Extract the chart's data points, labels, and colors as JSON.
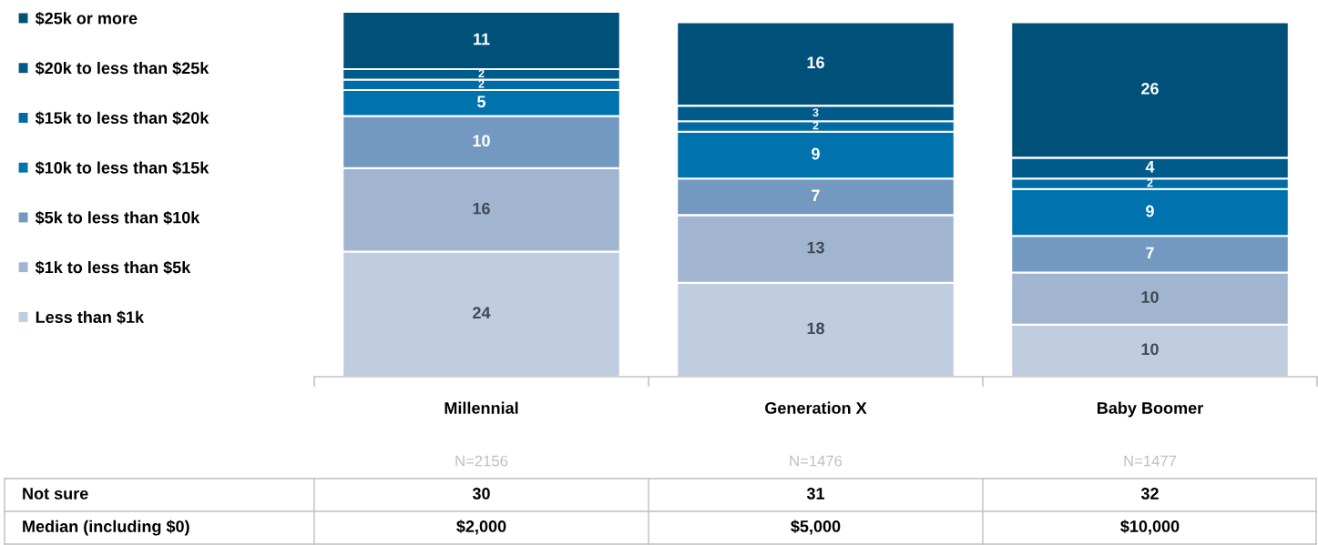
{
  "chart_data": {
    "type": "bar",
    "stacked": true,
    "data_labels": true,
    "legend": "top left",
    "grid": false,
    "categories": [
      "Millennial",
      "Generation X",
      "Baby Boomer"
    ],
    "series": [
      {
        "name": "Less than $1k",
        "color": "#c0cde0",
        "values": [
          24,
          18,
          10
        ]
      },
      {
        "name": "$1k to less than $5k",
        "color": "#a2b5d0",
        "values": [
          16,
          13,
          10
        ]
      },
      {
        "name": "$5k to less than $10k",
        "color": "#7399c0",
        "values": [
          10,
          7,
          7
        ]
      },
      {
        "name": "$10k to less than $15k",
        "color": "#0072ae",
        "values": [
          5,
          9,
          9
        ]
      },
      {
        "name": "$15k to less than $20k",
        "color": "#006ba5",
        "values": [
          2,
          2,
          2
        ]
      },
      {
        "name": "$20k to less than $25k",
        "color": "#005a8a",
        "values": [
          2,
          3,
          4
        ]
      },
      {
        "name": "$25k or more",
        "color": "#00517a",
        "values": [
          11,
          16,
          26
        ]
      }
    ],
    "annotations": [
      "N=2156",
      "N=1476",
      "N=1477",
      "Not sure",
      "30",
      "31",
      "32",
      "Median (including $0)",
      "$2,000",
      "$5,000",
      "$10,000"
    ]
  }
}
